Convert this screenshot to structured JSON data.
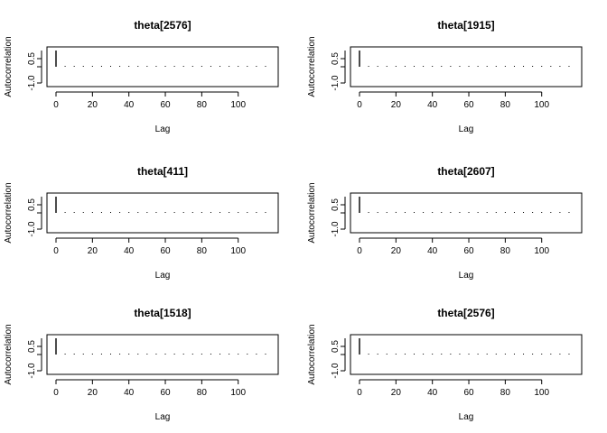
{
  "figure": {
    "description_type": "acf-grid",
    "rows": 3,
    "cols": 2
  },
  "chart_data": [
    {
      "type": "bar",
      "title": "theta[2576]",
      "xlabel": "Lag",
      "ylabel": "Autocorrelation",
      "xlim": [
        0,
        117
      ],
      "ylim": [
        -1,
        1
      ],
      "x_ticks": [
        0,
        20,
        40,
        60,
        80,
        100
      ],
      "y_ticks": [
        -1.0,
        0.5
      ],
      "y_tick_labels": [
        "-1.0",
        "0.5"
      ],
      "lags": [
        0,
        5,
        10,
        15,
        20,
        25,
        30,
        35,
        40,
        45,
        50,
        55,
        60,
        65,
        70,
        75,
        80,
        85,
        90,
        95,
        100,
        105,
        110,
        115
      ],
      "values": [
        1.0,
        0.02,
        0.01,
        -0.01,
        0.0,
        0.01,
        0.0,
        -0.01,
        0.02,
        0.03,
        0.0,
        0.01,
        -0.02,
        0.01,
        0.02,
        0.0,
        0.03,
        0.01,
        0.0,
        -0.01,
        0.01,
        0.0,
        0.01,
        -0.01
      ]
    },
    {
      "type": "bar",
      "title": "theta[1915]",
      "xlabel": "Lag",
      "ylabel": "Autocorrelation",
      "xlim": [
        0,
        117
      ],
      "ylim": [
        -1,
        1
      ],
      "x_ticks": [
        0,
        20,
        40,
        60,
        80,
        100
      ],
      "y_ticks": [
        -1.0,
        0.5
      ],
      "y_tick_labels": [
        "-1.0",
        "0.5"
      ],
      "lags": [
        0,
        5,
        10,
        15,
        20,
        25,
        30,
        35,
        40,
        45,
        50,
        55,
        60,
        65,
        70,
        75,
        80,
        85,
        90,
        95,
        100,
        105,
        110,
        115
      ],
      "values": [
        1.0,
        0.03,
        0.0,
        0.01,
        0.0,
        0.02,
        0.01,
        0.0,
        0.03,
        0.01,
        -0.01,
        0.02,
        0.0,
        0.01,
        0.0,
        0.03,
        0.01,
        0.0,
        0.01,
        0.02,
        0.0,
        0.01,
        0.0,
        0.01
      ]
    },
    {
      "type": "bar",
      "title": "theta[411]",
      "xlabel": "Lag",
      "ylabel": "Autocorrelation",
      "xlim": [
        0,
        117
      ],
      "ylim": [
        -1,
        1
      ],
      "x_ticks": [
        0,
        20,
        40,
        60,
        80,
        100
      ],
      "y_ticks": [
        -1.0,
        0.5
      ],
      "y_tick_labels": [
        "-1.0",
        "0.5"
      ],
      "lags": [
        0,
        5,
        10,
        15,
        20,
        25,
        30,
        35,
        40,
        45,
        50,
        55,
        60,
        65,
        70,
        75,
        80,
        85,
        90,
        95,
        100,
        105,
        110,
        115
      ],
      "values": [
        1.0,
        0.04,
        0.02,
        0.01,
        0.0,
        0.02,
        0.01,
        0.0,
        0.01,
        0.02,
        0.03,
        0.0,
        0.01,
        0.02,
        0.01,
        0.0,
        0.02,
        0.01,
        0.0,
        0.01,
        0.02,
        0.01,
        0.03,
        0.02
      ]
    },
    {
      "type": "bar",
      "title": "theta[2607]",
      "xlabel": "Lag",
      "ylabel": "Autocorrelation",
      "xlim": [
        0,
        117
      ],
      "ylim": [
        -1,
        1
      ],
      "x_ticks": [
        0,
        20,
        40,
        60,
        80,
        100
      ],
      "y_ticks": [
        -1.0,
        0.5
      ],
      "y_tick_labels": [
        "-1.0",
        "0.5"
      ],
      "lags": [
        0,
        5,
        10,
        15,
        20,
        25,
        30,
        35,
        40,
        45,
        50,
        55,
        60,
        65,
        70,
        75,
        80,
        85,
        90,
        95,
        100,
        105,
        110,
        115
      ],
      "values": [
        1.0,
        0.05,
        0.03,
        0.04,
        0.06,
        0.02,
        0.03,
        0.01,
        0.02,
        0.03,
        0.04,
        0.02,
        0.05,
        0.01,
        0.02,
        0.03,
        0.04,
        0.05,
        0.03,
        0.04,
        0.02,
        0.03,
        0.01,
        0.02
      ]
    },
    {
      "type": "bar",
      "title": "theta[1518]",
      "xlabel": "Lag",
      "ylabel": "Autocorrelation",
      "xlim": [
        0,
        117
      ],
      "ylim": [
        -1,
        1
      ],
      "x_ticks": [
        0,
        20,
        40,
        60,
        80,
        100
      ],
      "y_ticks": [
        -1.0,
        0.5
      ],
      "y_tick_labels": [
        "-1.0",
        "0.5"
      ],
      "lags": [
        0,
        5,
        10,
        15,
        20,
        25,
        30,
        35,
        40,
        45,
        50,
        55,
        60,
        65,
        70,
        75,
        80,
        85,
        90,
        95,
        100,
        105,
        110,
        115
      ],
      "values": [
        1.0,
        0.05,
        0.02,
        0.04,
        0.03,
        0.01,
        0.05,
        0.02,
        0.03,
        0.01,
        0.02,
        0.04,
        0.03,
        0.02,
        0.04,
        0.03,
        0.02,
        0.03,
        0.02,
        0.01,
        0.02,
        0.03,
        0.02,
        0.05
      ]
    },
    {
      "type": "bar",
      "title": "theta[2576]",
      "xlabel": "Lag",
      "ylabel": "Autocorrelation",
      "xlim": [
        0,
        117
      ],
      "ylim": [
        -1,
        1
      ],
      "x_ticks": [
        0,
        20,
        40,
        60,
        80,
        100
      ],
      "y_ticks": [
        -1.0,
        0.5
      ],
      "y_tick_labels": [
        "-1.0",
        "0.5"
      ],
      "lags": [
        0,
        5,
        10,
        15,
        20,
        25,
        30,
        35,
        40,
        45,
        50,
        55,
        60,
        65,
        70,
        75,
        80,
        85,
        90,
        95,
        100,
        105,
        110,
        115
      ],
      "values": [
        1.0,
        0.04,
        0.02,
        0.03,
        0.02,
        0.04,
        0.01,
        0.02,
        0.03,
        0.02,
        0.04,
        0.03,
        0.05,
        0.02,
        0.01,
        0.03,
        0.02,
        0.04,
        0.02,
        0.01,
        0.03,
        0.02,
        0.01,
        0.03
      ]
    }
  ]
}
